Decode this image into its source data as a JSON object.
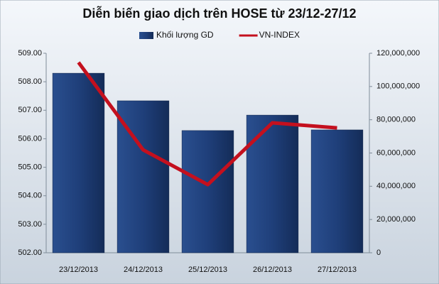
{
  "chart_data": {
    "type": "bar",
    "title": "Diễn biến giao dịch trên HOSE từ 23/12-27/12",
    "categories": [
      "23/12/2013",
      "24/12/2013",
      "25/12/2013",
      "26/12/2013",
      "27/12/2013"
    ],
    "series": [
      {
        "name": "Khối lượng GD",
        "color": "#1f3f7a",
        "type": "bar",
        "axis": "y2",
        "values": [
          108000000,
          91400000,
          73500000,
          82800000,
          73900000
        ]
      },
      {
        "name": "VN-INDEX",
        "color": "#c4101e",
        "type": "line",
        "values": [
          508.68,
          505.61,
          504.39,
          506.56,
          506.38
        ]
      }
    ],
    "ylim": [
      502,
      509
    ],
    "yticks": [
      {
        "value": 502,
        "label": "502.00"
      },
      {
        "value": 503,
        "label": "503.00"
      },
      {
        "value": 504,
        "label": "504.00"
      },
      {
        "value": 505,
        "label": "505.00"
      },
      {
        "value": 506,
        "label": "506.00"
      },
      {
        "value": 507,
        "label": "507.00"
      },
      {
        "value": 508,
        "label": "508.00"
      },
      {
        "value": 509,
        "label": "509.00"
      }
    ],
    "y2lim": [
      0,
      120000000
    ],
    "y2ticks": [
      0,
      {
        "value": 20000000,
        "label": "20,000,000"
      },
      {
        "value": 40000000,
        "label": "40,000,000"
      },
      {
        "value": 60000000,
        "label": "60,000,000"
      },
      {
        "value": 80000000,
        "label": "80,000,000"
      },
      {
        "value": 100000000,
        "label": "100,000,000"
      },
      {
        "value": 120000000,
        "label": "120,000,000"
      }
    ],
    "legend": "top"
  }
}
